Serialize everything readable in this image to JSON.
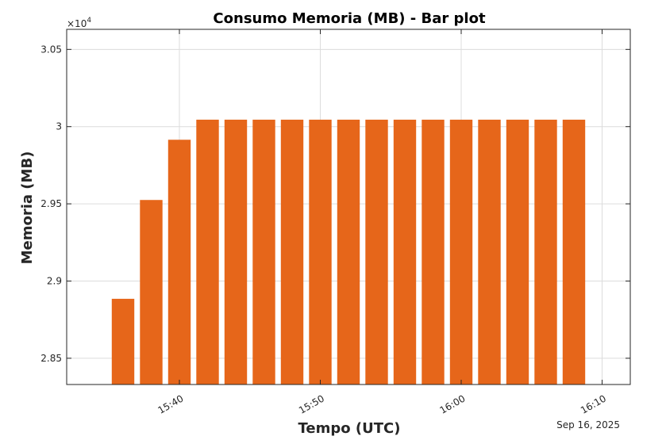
{
  "chart_data": {
    "type": "bar",
    "title": "Consumo Memoria (MB) - Bar plot",
    "xlabel": "Tempo (UTC)",
    "ylabel": "Memoria (MB)",
    "y_multiplier_label": "×10",
    "y_multiplier_exponent": "4",
    "date_label": "Sep 16, 2025",
    "color": "#E6661A",
    "ylim": [
      28330,
      30630
    ],
    "y_ticks": [
      {
        "value": 28500,
        "label": "2.85"
      },
      {
        "value": 29000,
        "label": "2.9"
      },
      {
        "value": 29500,
        "label": "2.95"
      },
      {
        "value": 30000,
        "label": "3"
      },
      {
        "value": 30500,
        "label": "3.05"
      }
    ],
    "xlim": [
      "15:32",
      "16:12"
    ],
    "x_ticks": [
      "15:40",
      "15:50",
      "16:00",
      "16:10"
    ],
    "x": [
      "15:36",
      "15:38",
      "15:40",
      "15:42",
      "15:44",
      "15:46",
      "15:48",
      "15:50",
      "15:52",
      "15:54",
      "15:56",
      "15:58",
      "16:00",
      "16:02",
      "16:04",
      "16:06",
      "16:08"
    ],
    "values": [
      28885,
      29525,
      29915,
      30045,
      30045,
      30045,
      30045,
      30045,
      30045,
      30045,
      30045,
      30045,
      30045,
      30045,
      30045,
      30045,
      30045
    ],
    "grid": true
  }
}
